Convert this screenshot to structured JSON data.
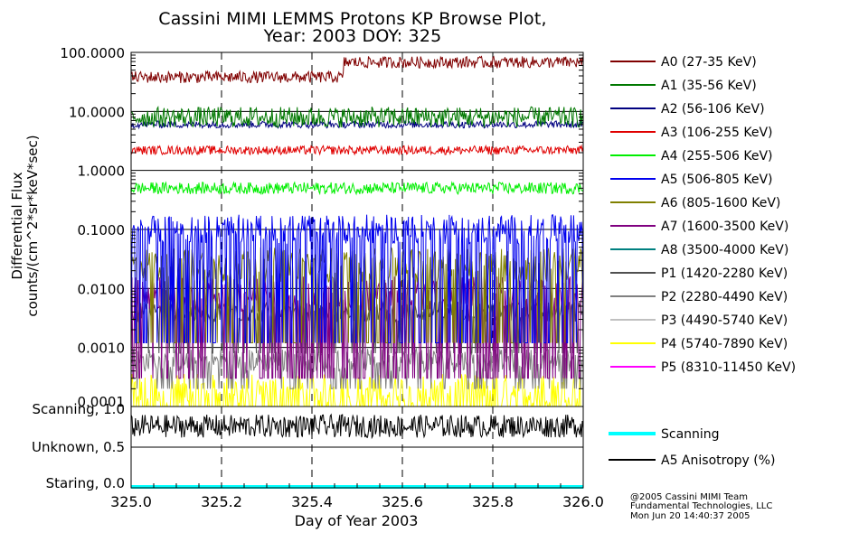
{
  "chart_data": {
    "type": "line",
    "title": "Cassini MIMI LEMMS Protons KP Browse Plot,",
    "subtitle": "Year: 2003 DOY: 325",
    "xlabel": "Day of Year 2003",
    "ylabel": "Differential Flux",
    "ylabel_units": "counts/(cm^2*sr*keV*sec)",
    "y_scale": "log",
    "xlim": [
      325.0,
      326.0
    ],
    "ylim": [
      0.0001,
      100.0
    ],
    "x_ticks": [
      "325.0",
      "325.2",
      "325.4",
      "325.6",
      "325.8",
      "326.0"
    ],
    "y_ticks": [
      "0.0001",
      "0.0010",
      "0.0100",
      "0.1000",
      "1.0000",
      "10.0000",
      "100.0000"
    ],
    "grid": true,
    "legend_position": "right",
    "series": [
      {
        "name": "A0 (27-35 KeV)",
        "color": "#800000",
        "level_before_325_47": 38,
        "level_after_325_47": 68
      },
      {
        "name": "A1 (35-56 KeV)",
        "color": "#007800",
        "typical": 8
      },
      {
        "name": "A2 (56-106 KeV)",
        "color": "#000080",
        "typical": 6
      },
      {
        "name": "A3 (106-255 KeV)",
        "color": "#e00000",
        "typical": 2.2
      },
      {
        "name": "A4 (255-506 KeV)",
        "color": "#00ee00",
        "typical": 0.5
      },
      {
        "name": "A5 (506-805 KeV)",
        "color": "#0000ee",
        "typical": 0.1
      },
      {
        "name": "A6 (805-1600 KeV)",
        "color": "#808000",
        "typical": 0.025
      },
      {
        "name": "A7 (1600-3500 KeV)",
        "color": "#800080",
        "typical": 0.008
      },
      {
        "name": "A8 (3500-4000 KeV)",
        "color": "#008080",
        "typical": null
      },
      {
        "name": "P1 (1420-2280 KeV)",
        "color": "#505050",
        "typical": 0.004
      },
      {
        "name": "P2 (2280-4490 KeV)",
        "color": "#808080",
        "typical": 0.0006
      },
      {
        "name": "P3 (4490-5740 KeV)",
        "color": "#c0c0c0",
        "typical": null
      },
      {
        "name": "P4 (5740-7890 KeV)",
        "color": "#ffff00",
        "typical": 0.0002
      },
      {
        "name": "P5 (8310-11450 KeV)",
        "color": "#ff00ff",
        "typical": null
      }
    ],
    "lower_panel": {
      "y_tick_labels": [
        "Scanning, 1.0",
        "Unknown, 0.5",
        "Staring, 0.0"
      ],
      "series": [
        {
          "name": "Scanning",
          "color": "#00ffff",
          "value": 0.0
        },
        {
          "name": "A5 Anisotropy (%)",
          "color": "#000000",
          "typical": 0.78
        }
      ]
    }
  },
  "credits": [
    "@2005 Cassini MIMI Team",
    "Fundamental Technologies, LLC",
    "Mon Jun 20 14:40:37 2005"
  ]
}
